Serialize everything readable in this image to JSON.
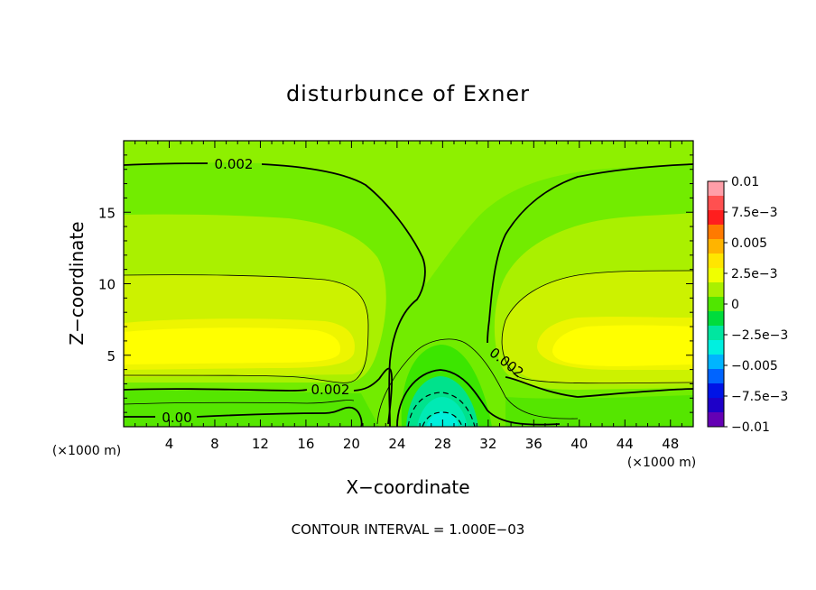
{
  "chart_data": {
    "type": "contour",
    "title": "disturbunce of Exner",
    "xlabel": "X−coordinate",
    "ylabel": "Z−coordinate",
    "x_unit": "(×1000 m)",
    "xlim": [
      0,
      50
    ],
    "ylim": [
      0,
      20
    ],
    "xticks": [
      4,
      8,
      12,
      16,
      20,
      24,
      28,
      32,
      36,
      40,
      44,
      48
    ],
    "yticks": [
      5,
      10,
      15
    ],
    "footer": "CONTOUR INTERVAL = 1.000E−03",
    "contour_interval": 0.001,
    "colorbar": {
      "min": -0.01,
      "max": 0.01,
      "labels": [
        "0.01",
        "7.5e−3",
        "0.005",
        "2.5e−3",
        "0",
        "−2.5e−3",
        "−0.005",
        "−7.5e−3",
        "−0.01"
      ],
      "colors": [
        "#ff9ea8",
        "#ff5050",
        "#ff1e1e",
        "#ff7a00",
        "#ffb400",
        "#ffe600",
        "#f0ff00",
        "#aaf000",
        "#50e600",
        "#00dc3c",
        "#00e6a0",
        "#00f0e0",
        "#00b4ff",
        "#0064ff",
        "#0014e6",
        "#1e00c8",
        "#6400b4"
      ]
    },
    "contour_labels": [
      {
        "text": "0.002",
        "x": 12.5,
        "z": 18.3
      },
      {
        "text": "0.002",
        "x": 18.0,
        "z": 2.6
      },
      {
        "text": "0.00",
        "x": 4.5,
        "z": 0.6
      },
      {
        "text": "0.002",
        "x": 34.3,
        "z": 4.3
      }
    ]
  }
}
